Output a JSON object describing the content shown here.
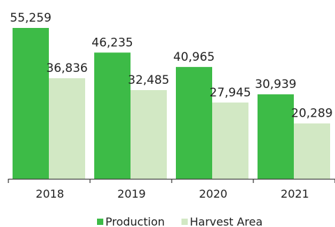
{
  "chart_data": {
    "type": "bar",
    "categories": [
      "2018",
      "2019",
      "2020",
      "2021"
    ],
    "series": [
      {
        "name": "Production",
        "values": [
          55259,
          46235,
          40965,
          30939
        ],
        "labels": [
          "55,259",
          "46,235",
          "40,965",
          "30,939"
        ],
        "color": "#3dbb47"
      },
      {
        "name": "Harvest Area",
        "values": [
          36836,
          32485,
          27945,
          20289
        ],
        "labels": [
          "36,836",
          "32,485",
          "27,945",
          "20,289"
        ],
        "color": "#d2e8c4"
      }
    ],
    "ylim": [
      0,
      55259
    ],
    "grid": false,
    "legend_position": "bottom"
  }
}
